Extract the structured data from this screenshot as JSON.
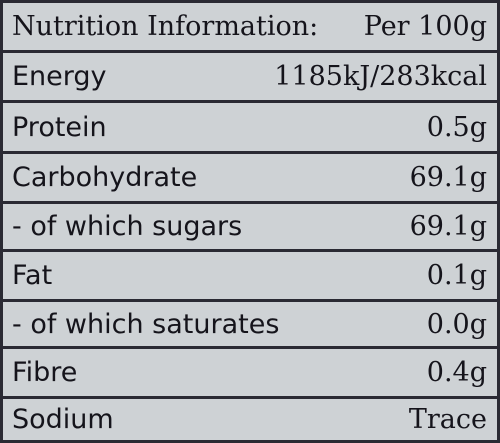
{
  "table": {
    "header": {
      "label": "Nutrition Information:",
      "value": "Per 100g"
    },
    "rows": [
      {
        "label": "Energy",
        "value": "1185kJ/283kcal"
      },
      {
        "label": "Protein",
        "value": "0.5g"
      },
      {
        "label": "Carbohydrate",
        "value": "69.1g"
      },
      {
        "label": "- of which sugars",
        "value": "69.1g"
      },
      {
        "label": "Fat",
        "value": "0.1g"
      },
      {
        "label": "- of which saturates",
        "value": "0.0g"
      },
      {
        "label": "Fibre",
        "value": "0.4g"
      },
      {
        "label": "Sodium",
        "value": "Trace"
      }
    ]
  },
  "colors": {
    "background": "#ced2d5",
    "rule": "#2a2a33",
    "text": "#15141b"
  }
}
